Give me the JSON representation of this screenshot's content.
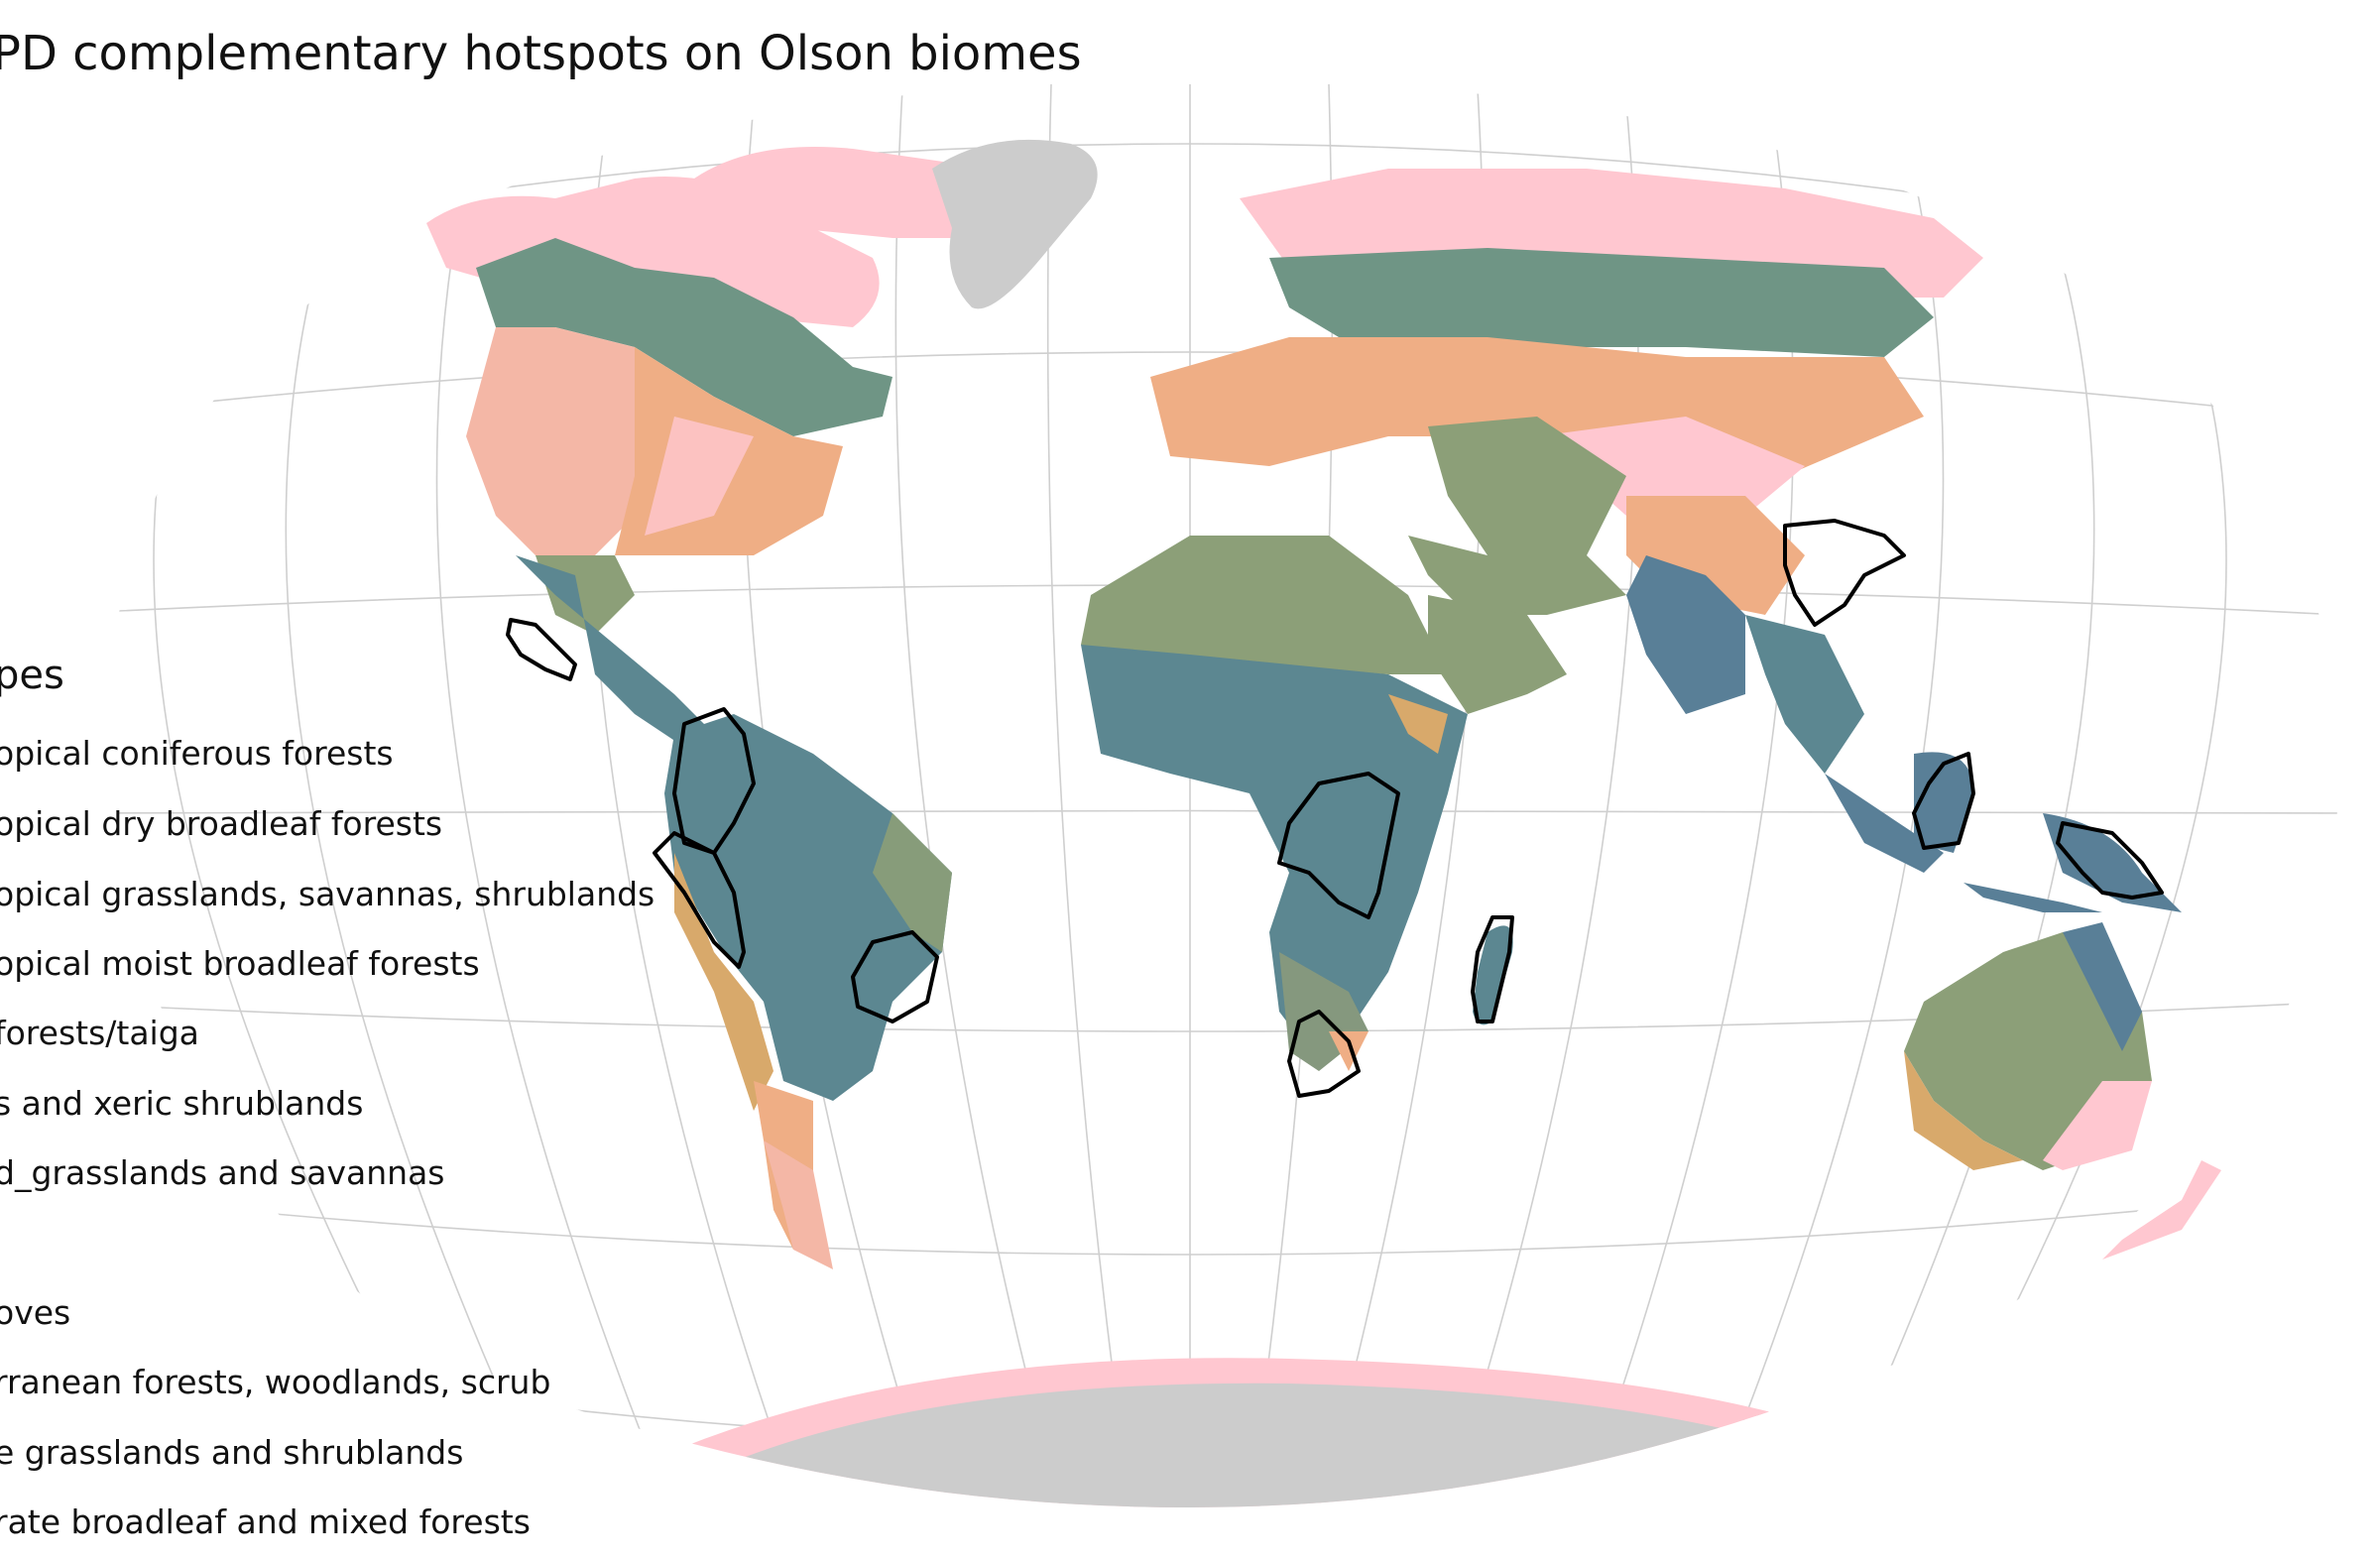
{
  "map": {
    "title": "PD complementary hotspots on Olson biomes",
    "projection": "Winkel tripel",
    "land_colors": {
      "tundra": "#ffc7d0",
      "temperate_broadleaf": "#efae85",
      "temperate_conifer": "#f4b7a6",
      "boreal": "#6f9585",
      "desert": "#8c9f78",
      "tropical_moist": "#5c8791",
      "tropical_dry": "#597f97",
      "tropical_savanna": "#85987e",
      "mediterranean": "#e7aa85",
      "montane": "#d8a96b",
      "ice": "#cccccc",
      "hotspot_outline": "#000000"
    },
    "hotspots": [
      "Southern Mexico",
      "Colombia",
      "Ecuador-Peru",
      "Eastern Brazil",
      "Congo Basin",
      "South Africa",
      "Madagascar",
      "Southwest China",
      "Borneo",
      "New Guinea"
    ]
  },
  "legend": {
    "title": "pes",
    "items": [
      "opical coniferous forests",
      "opical dry broadleaf forests",
      "opical grasslands, savannas, shrublands",
      "opical moist broadleaf forests",
      "forests/taiga",
      "s and xeric shrublands",
      "d_grasslands and savannas",
      "oves",
      "rranean forests, woodlands, scrub",
      "e grasslands and shrublands",
      "rate broadleaf and mixed forests"
    ]
  }
}
